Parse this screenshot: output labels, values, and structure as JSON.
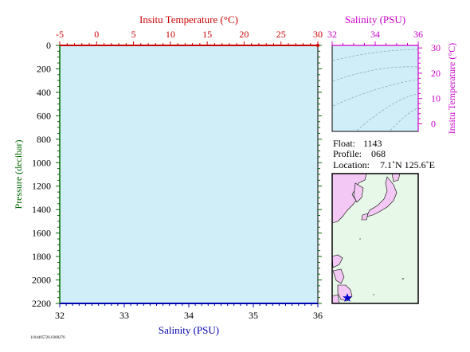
{
  "chart_data": [
    {
      "type": "line",
      "top_axis": {
        "label": "Insitu Temperature (°C)",
        "ticks": [
          "-5",
          "0",
          "5",
          "10",
          "15",
          "20",
          "25",
          "30"
        ],
        "range": [
          -5,
          30
        ],
        "color": "#cc0000"
      },
      "bottom_axis": {
        "label": "Salinity (PSU)",
        "ticks": [
          "32",
          "33",
          "34",
          "35",
          "36"
        ],
        "range": [
          32,
          36
        ],
        "color": "#0000aa"
      },
      "left_axis": {
        "label": "Pressure (decibar)",
        "ticks": [
          "0",
          "200",
          "400",
          "600",
          "800",
          "1000",
          "1200",
          "1400",
          "1600",
          "1800",
          "2000",
          "2200"
        ],
        "range": [
          0,
          2200
        ],
        "inverted": true,
        "color": "#006600"
      },
      "background": "#d0eef8",
      "series": [
        {
          "axis": "temperature",
          "color": "#cc0000",
          "points": [
            [
              30,
              0
            ]
          ]
        }
      ]
    },
    {
      "type": "scatter",
      "x_axis": {
        "label": "Salinity (PSU)",
        "ticks": [
          "32",
          "34",
          "36"
        ],
        "range": [
          32,
          36
        ],
        "color": "#cc00cc"
      },
      "y_axis": {
        "label": "Insitu Temperature (°C)",
        "ticks": [
          "0",
          "10",
          "20",
          "30"
        ],
        "range": [
          -3,
          31
        ],
        "color": "#cc00cc"
      },
      "background": "#d0eef8",
      "density_contours": true
    }
  ],
  "info": {
    "float_label": "Float:",
    "float_value": "1143",
    "profile_label": "Profile:",
    "profile_value": "068",
    "location_label": "Location:",
    "location_value": "7.1˚N  125.6˚E"
  },
  "map": {
    "ocean_color": "#e8f8e8",
    "land_color": "#f4c8f4",
    "marker_color": "#0000cc"
  },
  "footer": {
    "code": "1104405726.0300276"
  }
}
